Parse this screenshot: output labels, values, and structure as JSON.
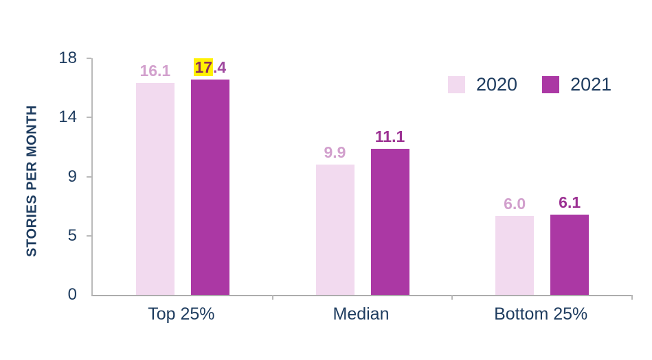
{
  "chart_data": {
    "type": "bar",
    "title": "",
    "xlabel": "",
    "ylabel": "STORIES PER MONTH",
    "categories": [
      "Top 25%",
      "Median",
      "Bottom 25%"
    ],
    "series": [
      {
        "name": "2020",
        "color": "#F2DAEF",
        "label_color": "#D2A0CD",
        "values": [
          16.1,
          9.9,
          6.0
        ],
        "labels": [
          "16.1",
          "9.9",
          "6.0"
        ]
      },
      {
        "name": "2021",
        "color": "#AB38A4",
        "label_color": "#9C3193",
        "values": [
          17.4,
          11.1,
          6.1
        ],
        "labels": [
          "17.4",
          "11.1",
          "6.1"
        ]
      }
    ],
    "value_highlight": {
      "series_index": 1,
      "category_index": 0,
      "highlighted_part": "17",
      "rest_part": ".4",
      "highlight_background": "#FFF104",
      "highlighted_text_color": "#8B2E5B",
      "rest_text_color": "#A04AA0"
    },
    "y_axis": {
      "min": 0,
      "max": 18,
      "tick_labels": [
        "0",
        "5",
        "9",
        "14",
        "18"
      ]
    },
    "legend_position": "top-right",
    "grid": false,
    "colors": {
      "background": "#FFFFFF",
      "axis": "#B9B9B9",
      "text": "#1E3C5F"
    }
  }
}
